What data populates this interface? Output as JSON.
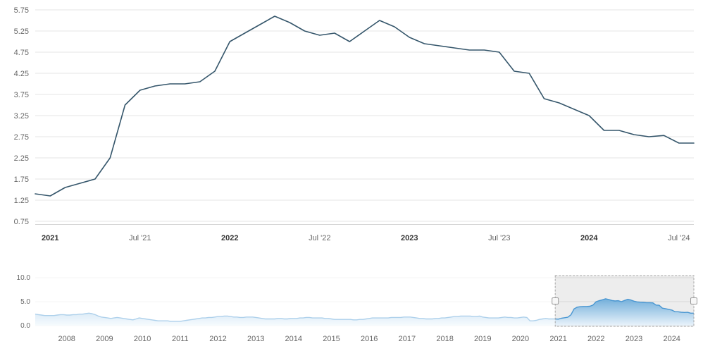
{
  "colors": {
    "background": "#ffffff",
    "gridline": "#e6e6e6",
    "axis_line": "#d6d6d6",
    "axis_label": "#666666",
    "axis_label_bold": "#333333",
    "main_line": "#35566b",
    "nav_line": "#4a97d2",
    "nav_fill_top": "#5fa5d8",
    "nav_fill_bottom": "#eaf4fc",
    "selection_fill": "rgba(115,115,115,0.13)",
    "selection_border": "#a6a6a6",
    "mask_unselected": "rgba(255,255,255,0.55)",
    "handle_fill": "#f7f7f7",
    "handle_border": "#999999"
  },
  "chart_data": [
    {
      "id": "main-chart",
      "type": "line",
      "title": "",
      "xlabel": "",
      "ylabel": "",
      "x_start": "Dec 2020",
      "x_interval": "monthly",
      "ylim": [
        0.75,
        5.75
      ],
      "grid": true,
      "legend": "none",
      "y_ticks": [
        "5.75",
        "5.25",
        "4.75",
        "4.25",
        "3.75",
        "3.25",
        "2.75",
        "2.25",
        "1.75",
        "1.25",
        "0.75"
      ],
      "x_ticks": [
        {
          "label": "2021",
          "i": 1,
          "bold": true
        },
        {
          "label": "Jul '21",
          "i": 7,
          "bold": false
        },
        {
          "label": "2022",
          "i": 13,
          "bold": true
        },
        {
          "label": "Jul '22",
          "i": 19,
          "bold": false
        },
        {
          "label": "2023",
          "i": 25,
          "bold": true
        },
        {
          "label": "Jul '23",
          "i": 31,
          "bold": false
        },
        {
          "label": "2024",
          "i": 37,
          "bold": true
        },
        {
          "label": "Jul '24",
          "i": 43,
          "bold": false
        }
      ],
      "series": [
        {
          "name": "value",
          "values": [
            1.4,
            1.35,
            1.55,
            1.65,
            1.75,
            2.25,
            3.5,
            3.85,
            3.95,
            4.0,
            4.0,
            4.05,
            4.3,
            5.0,
            5.2,
            5.4,
            5.6,
            5.45,
            5.25,
            5.15,
            5.2,
            5.0,
            5.25,
            5.5,
            5.35,
            5.1,
            4.95,
            4.9,
            4.85,
            4.8,
            4.8,
            4.75,
            4.3,
            4.25,
            3.65,
            3.55,
            3.4,
            3.25,
            2.9,
            2.9,
            2.8,
            2.75,
            2.78,
            2.6,
            2.6
          ]
        }
      ]
    },
    {
      "id": "navigator",
      "type": "area",
      "x_start": "Mar 2007",
      "x_interval": "monthly",
      "ylim": [
        0,
        10
      ],
      "y_ticks": [
        "10.0",
        "5.0",
        "0.0"
      ],
      "x_ticks": [
        {
          "label": "2008",
          "i": 10
        },
        {
          "label": "2009",
          "i": 22
        },
        {
          "label": "2010",
          "i": 34
        },
        {
          "label": "2011",
          "i": 46
        },
        {
          "label": "2012",
          "i": 58
        },
        {
          "label": "2013",
          "i": 70
        },
        {
          "label": "2014",
          "i": 82
        },
        {
          "label": "2015",
          "i": 94
        },
        {
          "label": "2016",
          "i": 106
        },
        {
          "label": "2017",
          "i": 118
        },
        {
          "label": "2018",
          "i": 130
        },
        {
          "label": "2019",
          "i": 142
        },
        {
          "label": "2020",
          "i": 154
        },
        {
          "label": "2021",
          "i": 166
        },
        {
          "label": "2022",
          "i": 178
        },
        {
          "label": "2023",
          "i": 190
        },
        {
          "label": "2024",
          "i": 202
        }
      ],
      "selected_range": {
        "from_i": 165,
        "to_i": 209
      },
      "series": [
        {
          "name": "value",
          "values": [
            2.4,
            2.3,
            2.2,
            2.1,
            2.1,
            2.1,
            2.1,
            2.2,
            2.3,
            2.3,
            2.2,
            2.2,
            2.3,
            2.3,
            2.4,
            2.4,
            2.5,
            2.6,
            2.5,
            2.3,
            2.0,
            1.8,
            1.7,
            1.6,
            1.5,
            1.6,
            1.7,
            1.6,
            1.5,
            1.4,
            1.3,
            1.2,
            1.4,
            1.6,
            1.5,
            1.4,
            1.3,
            1.2,
            1.1,
            1.0,
            1.0,
            1.0,
            1.0,
            0.9,
            0.9,
            0.9,
            0.9,
            1.0,
            1.1,
            1.2,
            1.3,
            1.4,
            1.5,
            1.6,
            1.6,
            1.7,
            1.7,
            1.8,
            1.9,
            1.9,
            2.0,
            2.0,
            1.9,
            1.8,
            1.8,
            1.7,
            1.7,
            1.8,
            1.8,
            1.8,
            1.7,
            1.6,
            1.5,
            1.4,
            1.4,
            1.4,
            1.4,
            1.5,
            1.5,
            1.4,
            1.4,
            1.5,
            1.5,
            1.5,
            1.6,
            1.6,
            1.7,
            1.7,
            1.6,
            1.6,
            1.6,
            1.6,
            1.5,
            1.5,
            1.4,
            1.3,
            1.3,
            1.3,
            1.3,
            1.3,
            1.3,
            1.2,
            1.2,
            1.3,
            1.3,
            1.4,
            1.5,
            1.6,
            1.6,
            1.6,
            1.6,
            1.6,
            1.6,
            1.7,
            1.7,
            1.7,
            1.7,
            1.8,
            1.8,
            1.8,
            1.7,
            1.6,
            1.5,
            1.5,
            1.4,
            1.4,
            1.4,
            1.5,
            1.5,
            1.6,
            1.6,
            1.7,
            1.8,
            1.9,
            1.9,
            2.0,
            2.0,
            2.0,
            2.0,
            1.9,
            1.9,
            2.0,
            1.8,
            1.7,
            1.6,
            1.6,
            1.6,
            1.6,
            1.7,
            1.8,
            1.7,
            1.7,
            1.6,
            1.6,
            1.7,
            1.8,
            1.7,
            1.0,
            1.0,
            1.1,
            1.3,
            1.4,
            1.5,
            1.4,
            1.4,
            1.4,
            1.35,
            1.55,
            1.65,
            1.75,
            2.25,
            3.5,
            3.85,
            3.95,
            4.0,
            4.0,
            4.05,
            4.3,
            5.0,
            5.2,
            5.4,
            5.6,
            5.45,
            5.25,
            5.15,
            5.2,
            5.0,
            5.25,
            5.5,
            5.35,
            5.1,
            4.95,
            4.9,
            4.85,
            4.8,
            4.8,
            4.75,
            4.3,
            4.25,
            3.65,
            3.55,
            3.4,
            3.25,
            2.9,
            2.9,
            2.8,
            2.75,
            2.78,
            2.6,
            2.6
          ]
        }
      ]
    }
  ]
}
